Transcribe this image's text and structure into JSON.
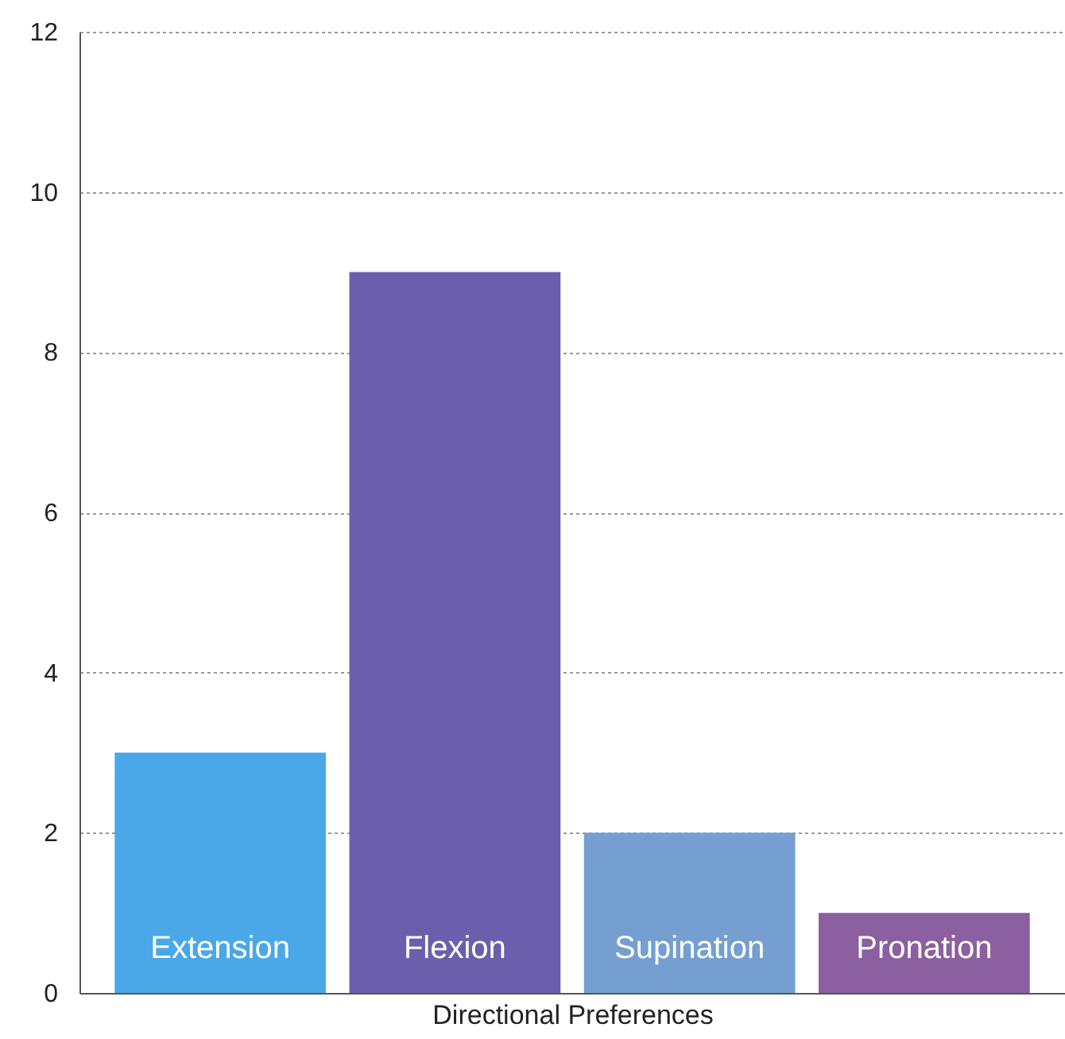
{
  "chart_data": {
    "type": "bar",
    "xlabel": "Directional Preferences",
    "categories": [
      "Extension",
      "Flexion",
      "Supination",
      "Pronation"
    ],
    "values": [
      3,
      9,
      2,
      1
    ],
    "colors": [
      "#4aa8e8",
      "#6b5fad",
      "#749fd0",
      "#8c5fa0"
    ],
    "ylim": [
      0,
      12
    ],
    "yticks": [
      0,
      2,
      4,
      6,
      8,
      10,
      12
    ],
    "grid": "y"
  }
}
